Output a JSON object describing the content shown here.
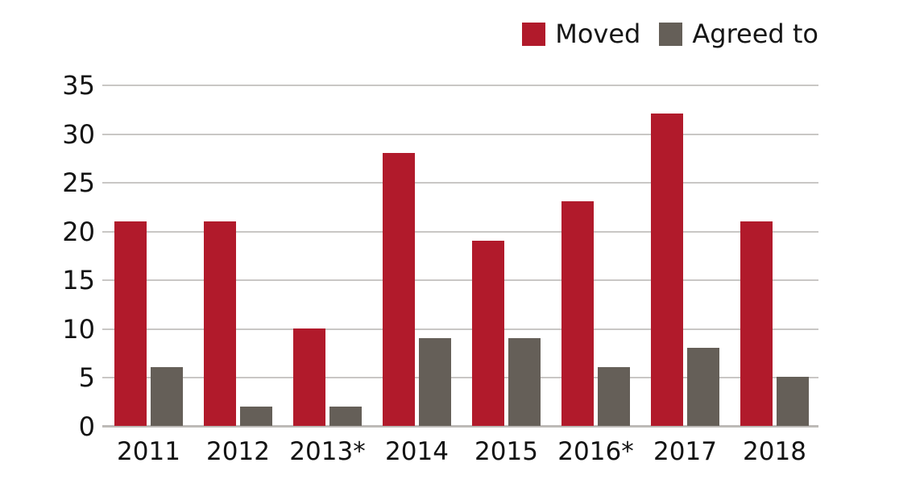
{
  "legend": {
    "items": [
      {
        "label": "Moved",
        "color": "#b11a2b"
      },
      {
        "label": "Agreed to",
        "color": "#655f58"
      }
    ]
  },
  "chart_data": {
    "type": "bar",
    "title": "",
    "xlabel": "",
    "ylabel": "",
    "categories": [
      "2011",
      "2012",
      "2013*",
      "2014",
      "2015",
      "2016*",
      "2017",
      "2018"
    ],
    "series": [
      {
        "name": "Moved",
        "color": "#b11a2b",
        "values": [
          21,
          21,
          10,
          28,
          19,
          23,
          32,
          21
        ]
      },
      {
        "name": "Agreed to",
        "color": "#655f58",
        "values": [
          6,
          2,
          2,
          9,
          9,
          6,
          8,
          5
        ]
      }
    ],
    "ylim": [
      0,
      35
    ],
    "yticks": [
      0,
      5,
      10,
      15,
      20,
      25,
      30,
      35
    ],
    "grid": true,
    "legend_position": "top-right"
  },
  "colors": {
    "background": "#ffffff",
    "gridline": "#c9c7c5",
    "baseline": "#bdbab7",
    "axis_text": "#131313"
  }
}
